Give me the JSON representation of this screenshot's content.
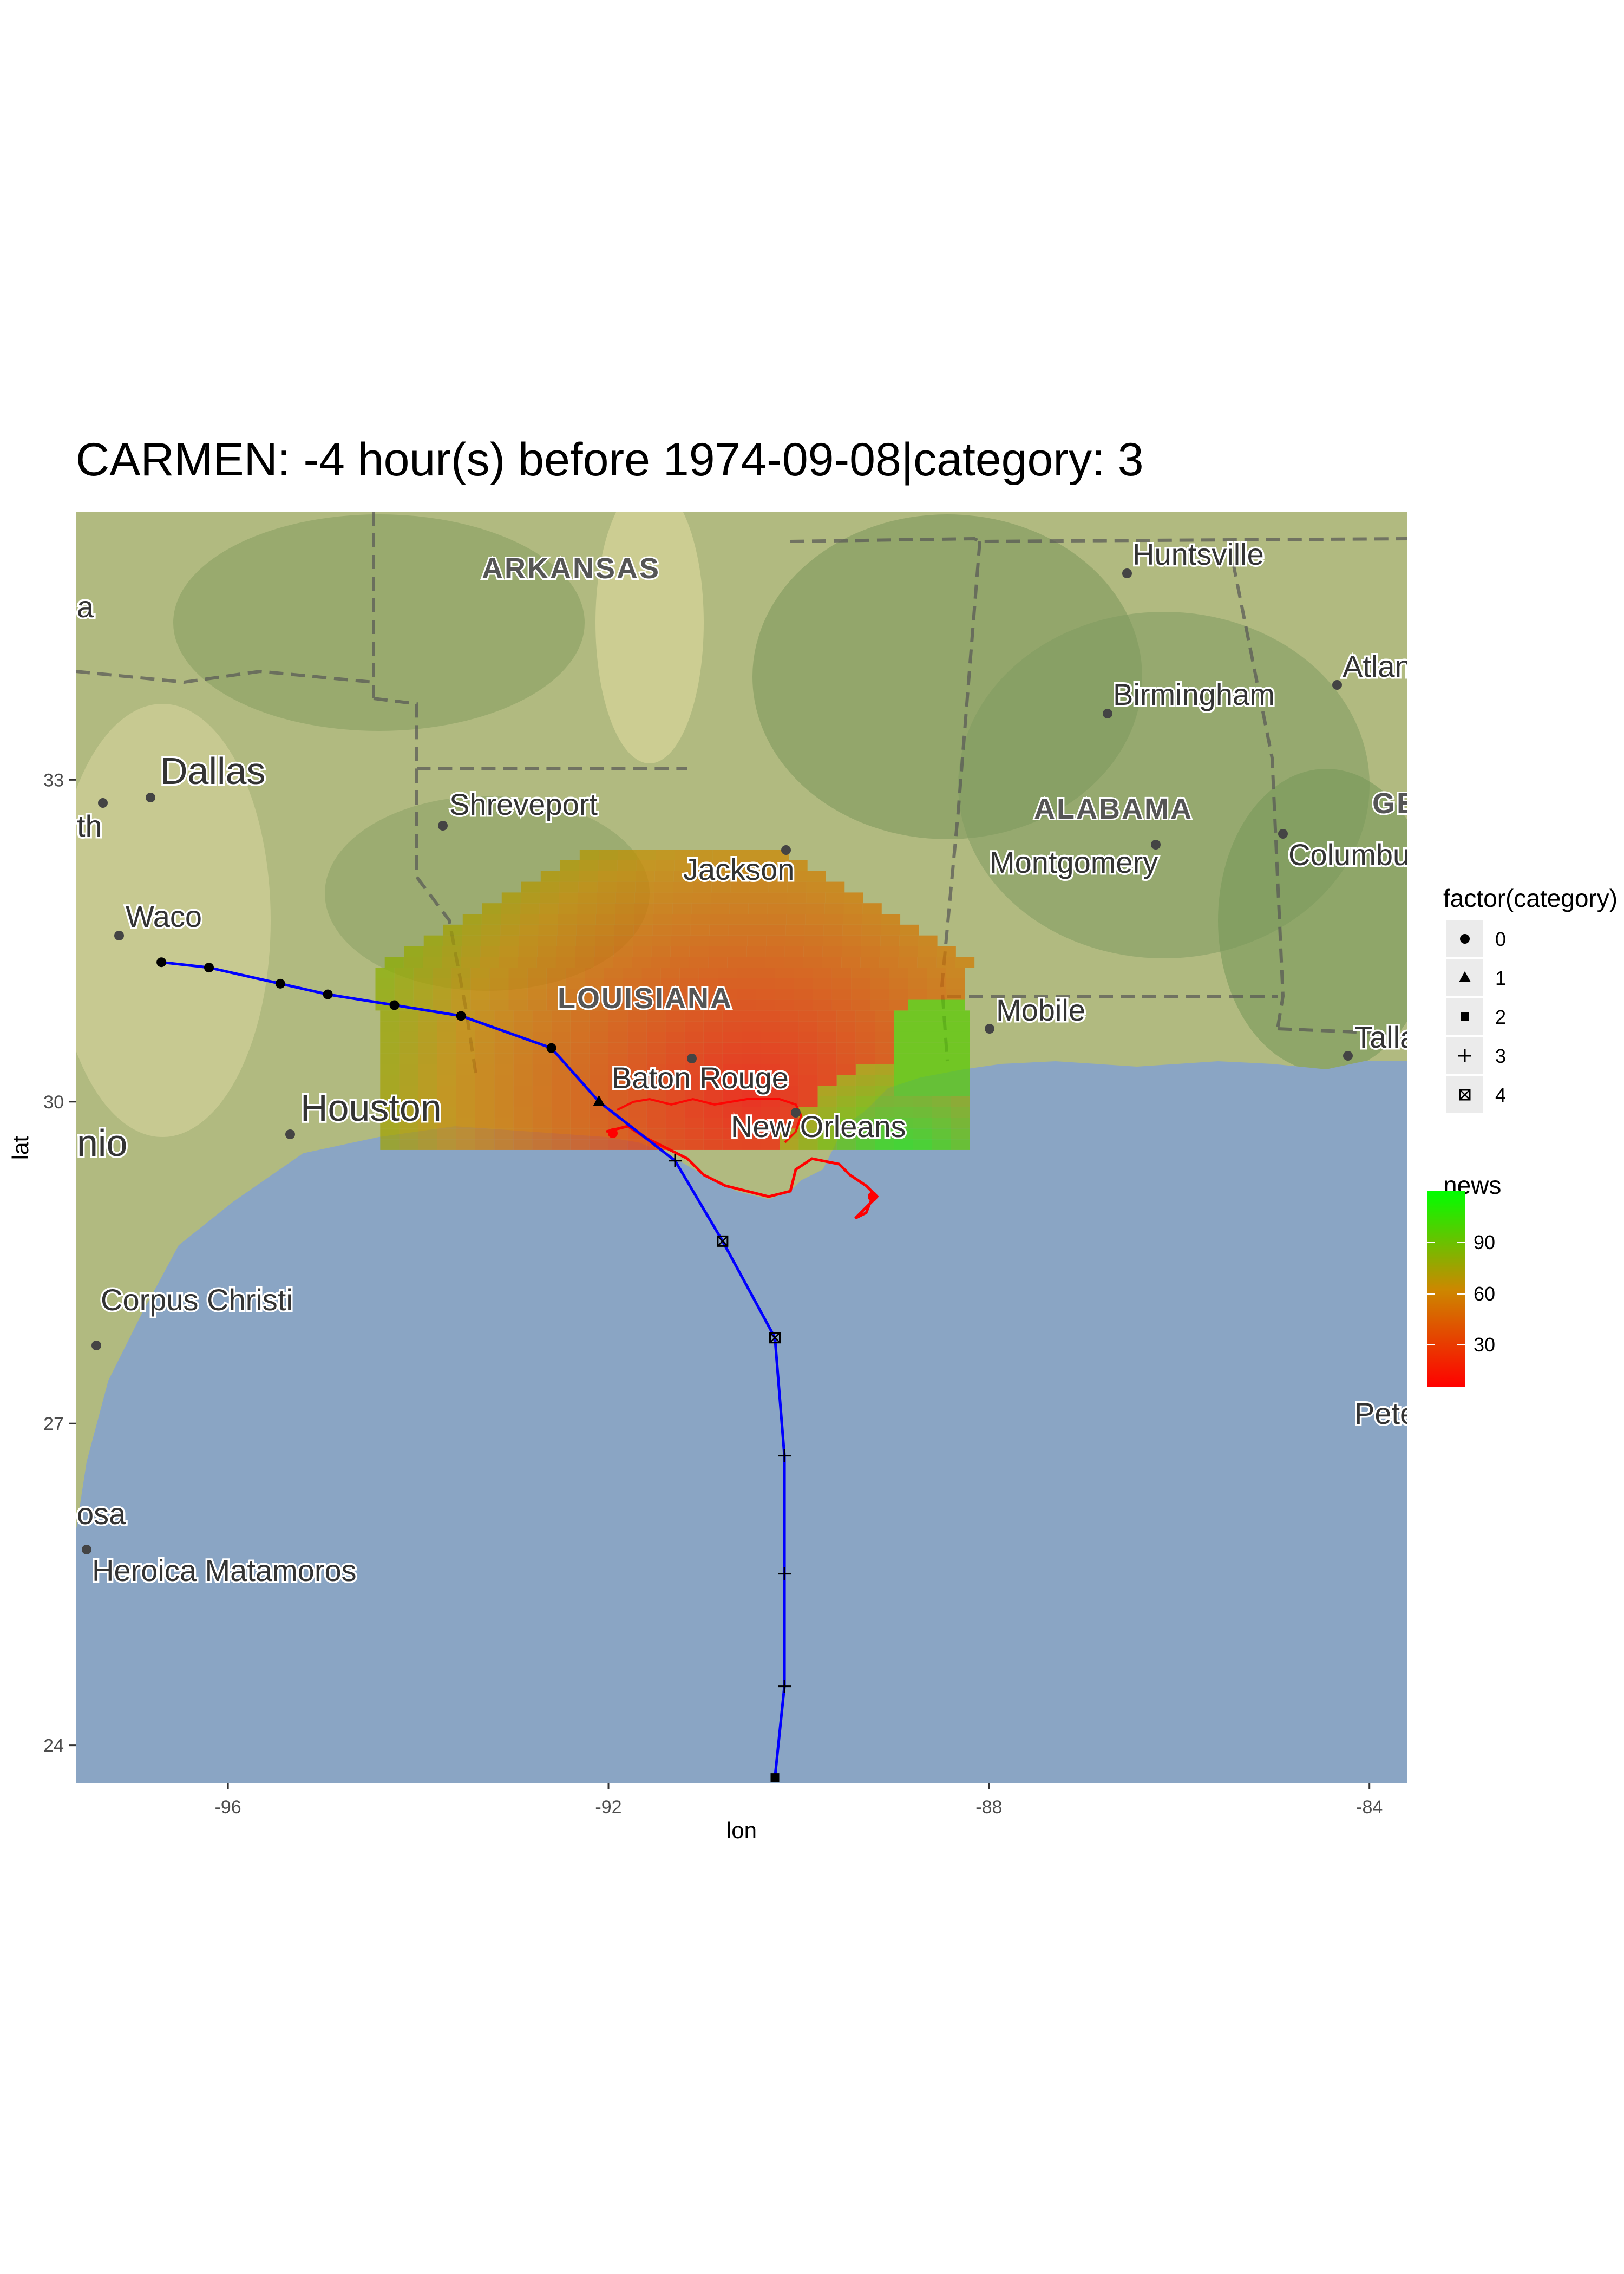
{
  "title": "CARMEN: -4 hour(s) before 1974-09-08|category: 3",
  "axes": {
    "xlabel": "lon",
    "ylabel": "lat",
    "x_ticks": [
      "-96",
      "-92",
      "-88",
      "-84"
    ],
    "y_ticks": [
      "24",
      "27",
      "30",
      "33"
    ]
  },
  "map_labels": {
    "states": [
      "ARKANSAS",
      "LOUISIANA",
      "ALABAMA",
      "GE"
    ],
    "cities": [
      "Huntsville",
      "Atlan",
      "Birmingham",
      "Dallas",
      "Shreveport",
      "Jackson",
      "Montgomery",
      "Columbus",
      "Waco",
      "Mobile",
      "Talla",
      "Houston",
      "Baton Rouge",
      "New Orleans",
      "nio",
      "Corpus Christi",
      "Pete",
      "osa",
      "Heroica Matamoros",
      "a",
      "th"
    ]
  },
  "legend_category": {
    "title": "factor(category)",
    "items": [
      {
        "label": "0",
        "shape": "circle"
      },
      {
        "label": "1",
        "shape": "triangle"
      },
      {
        "label": "2",
        "shape": "square"
      },
      {
        "label": "3",
        "shape": "plus"
      },
      {
        "label": "4",
        "shape": "square-cross"
      }
    ]
  },
  "legend_news": {
    "title": "news",
    "ticks": [
      "30",
      "60",
      "90"
    ],
    "colors": {
      "low": "#ff0000",
      "mid": "#cc8800",
      "high": "#00ff00"
    }
  },
  "colors": {
    "track": "#0000ff",
    "landfall_contour": "#ff0000",
    "water": "#8aa5c4",
    "land": "#a8b878"
  },
  "chart_data": {
    "type": "scatter",
    "title": "CARMEN: -4 hour(s) before 1974-09-08|category: 3",
    "xlabel": "lon",
    "ylabel": "lat",
    "xlim": [
      -97.6,
      -83.6
    ],
    "ylim": [
      23.65,
      35.5
    ],
    "grid": false,
    "legend_position": "right",
    "track": [
      {
        "lon": -90.25,
        "lat": 23.7,
        "category": 2
      },
      {
        "lon": -90.15,
        "lat": 24.55,
        "category": 3
      },
      {
        "lon": -90.15,
        "lat": 25.6,
        "category": 3
      },
      {
        "lon": -90.15,
        "lat": 26.7,
        "category": 3
      },
      {
        "lon": -90.25,
        "lat": 27.8,
        "category": 4
      },
      {
        "lon": -90.8,
        "lat": 28.7,
        "category": 4
      },
      {
        "lon": -91.3,
        "lat": 29.45,
        "category": 3
      },
      {
        "lon": -92.1,
        "lat": 30.0,
        "category": 1
      },
      {
        "lon": -92.6,
        "lat": 30.5,
        "category": 0
      },
      {
        "lon": -93.55,
        "lat": 30.8,
        "category": 0
      },
      {
        "lon": -94.25,
        "lat": 30.9,
        "category": 0
      },
      {
        "lon": -94.95,
        "lat": 31.0,
        "category": 0
      },
      {
        "lon": -95.45,
        "lat": 31.1,
        "category": 0
      },
      {
        "lon": -96.2,
        "lat": 31.25,
        "category": 0
      },
      {
        "lon": -96.7,
        "lat": 31.3,
        "category": 0
      }
    ],
    "news_heatmap": {
      "lon_range": [
        -94.45,
        -88.25
      ],
      "lat_range": [
        29.55,
        32.3
      ],
      "min": 5,
      "max": 120,
      "peak": {
        "lon": -90.6,
        "lat": 30.0,
        "value": 5
      },
      "green_tail": {
        "lon": -89.0,
        "lat": 29.3,
        "value": 120
      }
    }
  }
}
